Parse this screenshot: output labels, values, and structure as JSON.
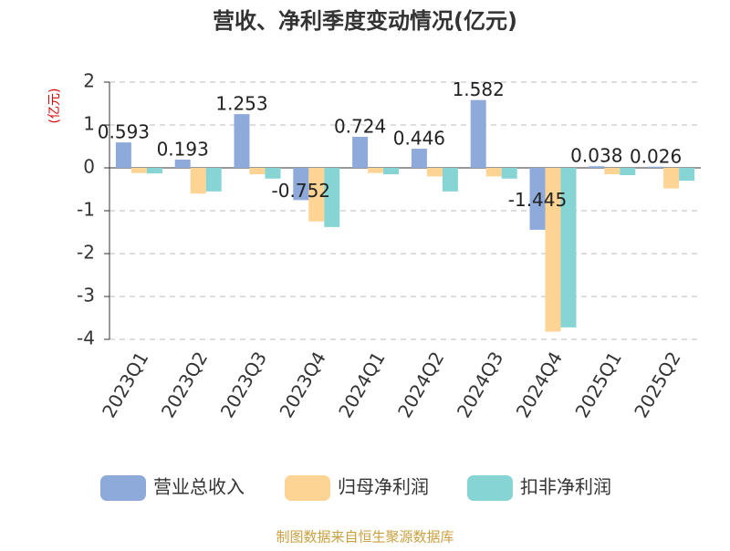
{
  "chart_data": {
    "type": "bar",
    "title": "营收、净利季度变动情况(亿元)",
    "y_label": "(亿元)",
    "source": "制图数据来自恒生聚源数据库",
    "categories": [
      "2023Q1",
      "2023Q2",
      "2023Q3",
      "2023Q4",
      "2024Q1",
      "2024Q2",
      "2024Q3",
      "2024Q4",
      "2025Q1",
      "2025Q2"
    ],
    "series": [
      {
        "name": "营业总收入",
        "color": "#8eaadb",
        "values": [
          0.593,
          0.193,
          1.253,
          -0.752,
          0.724,
          0.446,
          1.582,
          -1.445,
          0.038,
          0.026
        ],
        "labels_shown": true
      },
      {
        "name": "归母净利润",
        "color": "#fdd493",
        "values": [
          -0.12,
          -0.6,
          -0.15,
          -1.25,
          -0.12,
          -0.2,
          -0.2,
          -3.82,
          -0.15,
          -0.48
        ]
      },
      {
        "name": "扣非净利润",
        "color": "#86d4d4",
        "values": [
          -0.13,
          -0.55,
          -0.25,
          -1.38,
          -0.15,
          -0.55,
          -0.25,
          -3.72,
          -0.17,
          -0.3
        ]
      }
    ],
    "ylim": [
      -4,
      2
    ],
    "yticks": [
      -4,
      -3,
      -2,
      -1,
      0,
      1,
      2
    ],
    "grid": true,
    "legend": "bottom"
  }
}
